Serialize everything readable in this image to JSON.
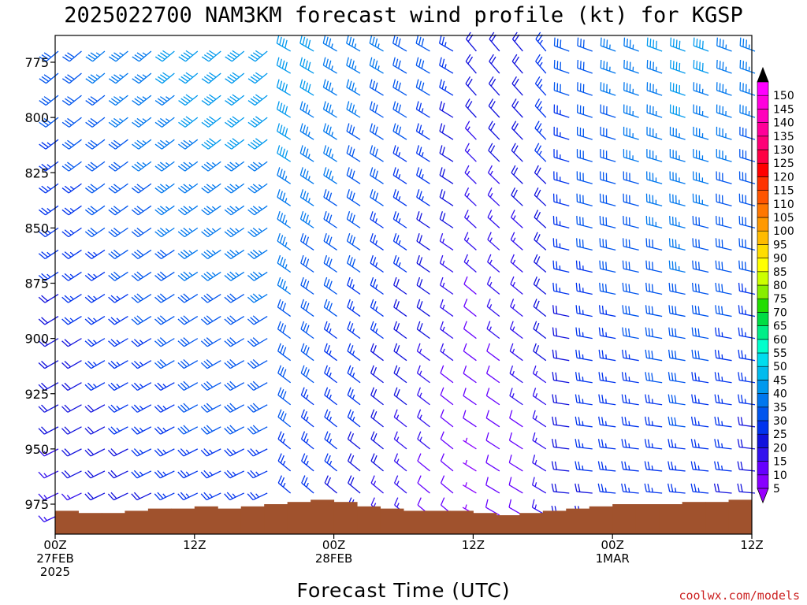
{
  "chart_data": {
    "type": "wind-barb-profile",
    "title": "2025022700 NAM3KM forecast wind profile (kt) for KGSP",
    "xlabel": "Forecast Time (UTC)",
    "credit": "coolwx.com/models",
    "x_ticks": [
      {
        "hour": 0,
        "lines": [
          "00Z",
          "27FEB",
          "2025"
        ]
      },
      {
        "hour": 12,
        "lines": [
          "12Z"
        ]
      },
      {
        "hour": 24,
        "lines": [
          "00Z",
          "28FEB"
        ]
      },
      {
        "hour": 36,
        "lines": [
          "12Z"
        ]
      },
      {
        "hour": 48,
        "lines": [
          "00Z",
          "1MAR"
        ]
      },
      {
        "hour": 60,
        "lines": [
          "12Z"
        ]
      }
    ],
    "xlim_hours": [
      0,
      60
    ],
    "y_ticks": [
      775,
      800,
      825,
      850,
      875,
      900,
      925,
      950,
      975
    ],
    "ylim_hpa": [
      990,
      765
    ],
    "time_step_hours": 2,
    "level_step_hpa": 10,
    "levels_top_hpa": 770,
    "colorbar": {
      "ticks": [
        5,
        10,
        15,
        20,
        25,
        30,
        35,
        40,
        45,
        50,
        55,
        60,
        65,
        70,
        75,
        80,
        85,
        90,
        95,
        100,
        105,
        110,
        115,
        120,
        125,
        130,
        135,
        140,
        145,
        150
      ],
      "colors": [
        "#8800ff",
        "#6600ff",
        "#3311ee",
        "#1111dd",
        "#0033ee",
        "#0055ee",
        "#0077ee",
        "#0099ee",
        "#00bbee",
        "#00ddee",
        "#00ffcc",
        "#00ee88",
        "#00dd44",
        "#22dd00",
        "#88ee00",
        "#ccff00",
        "#ffff00",
        "#ffdd00",
        "#ffbb00",
        "#ff9900",
        "#ff7700",
        "#ff5500",
        "#ff3300",
        "#ff0000",
        "#ff0044",
        "#ff0077",
        "#ff0099",
        "#ff00bb",
        "#ff00dd",
        "#ff00ff"
      ]
    },
    "terrain_color": "#a0522d",
    "surface_pressure_hpa": [
      {
        "hour": 0,
        "p": 978
      },
      {
        "hour": 2,
        "p": 979
      },
      {
        "hour": 4,
        "p": 979
      },
      {
        "hour": 6,
        "p": 978
      },
      {
        "hour": 8,
        "p": 977
      },
      {
        "hour": 10,
        "p": 977
      },
      {
        "hour": 12,
        "p": 976
      },
      {
        "hour": 14,
        "p": 977
      },
      {
        "hour": 16,
        "p": 976
      },
      {
        "hour": 18,
        "p": 975
      },
      {
        "hour": 20,
        "p": 974
      },
      {
        "hour": 22,
        "p": 973
      },
      {
        "hour": 24,
        "p": 974
      },
      {
        "hour": 26,
        "p": 976
      },
      {
        "hour": 28,
        "p": 977
      },
      {
        "hour": 30,
        "p": 978
      },
      {
        "hour": 32,
        "p": 978
      },
      {
        "hour": 34,
        "p": 978
      },
      {
        "hour": 36,
        "p": 979
      },
      {
        "hour": 38,
        "p": 980
      },
      {
        "hour": 40,
        "p": 979
      },
      {
        "hour": 42,
        "p": 978
      },
      {
        "hour": 44,
        "p": 977
      },
      {
        "hour": 46,
        "p": 976
      },
      {
        "hour": 48,
        "p": 975
      },
      {
        "hour": 50,
        "p": 975
      },
      {
        "hour": 52,
        "p": 975
      },
      {
        "hour": 54,
        "p": 974
      },
      {
        "hour": 56,
        "p": 974
      },
      {
        "hour": 58,
        "p": 973
      },
      {
        "hour": 60,
        "p": 973
      }
    ],
    "wind_direction_regimes": [
      {
        "from_hour": 0,
        "to_hour": 20,
        "dir_low_deg": 230,
        "dir_high_deg": 245
      },
      {
        "from_hour": 20,
        "to_hour": 36,
        "dir_low_deg": 300,
        "dir_high_deg": 310
      },
      {
        "from_hour": 36,
        "to_hour": 44,
        "dir_low_deg": 320,
        "dir_high_deg": 300
      },
      {
        "from_hour": 44,
        "to_hour": 60,
        "dir_low_deg": 290,
        "dir_high_deg": 275
      }
    ],
    "wind_speed_kt_by_time": [
      {
        "hour": 0,
        "low": 15,
        "high": 30
      },
      {
        "hour": 12,
        "low": 25,
        "high": 40
      },
      {
        "hour": 20,
        "low": 25,
        "high": 42
      },
      {
        "hour": 26,
        "low": 20,
        "high": 35
      },
      {
        "hour": 32,
        "low": 10,
        "high": 30
      },
      {
        "hour": 36,
        "low": 5,
        "high": 20
      },
      {
        "hour": 40,
        "low": 10,
        "high": 22
      },
      {
        "hour": 46,
        "low": 22,
        "high": 32
      },
      {
        "hour": 54,
        "low": 25,
        "high": 40
      },
      {
        "hour": 60,
        "low": 20,
        "high": 35
      }
    ]
  }
}
